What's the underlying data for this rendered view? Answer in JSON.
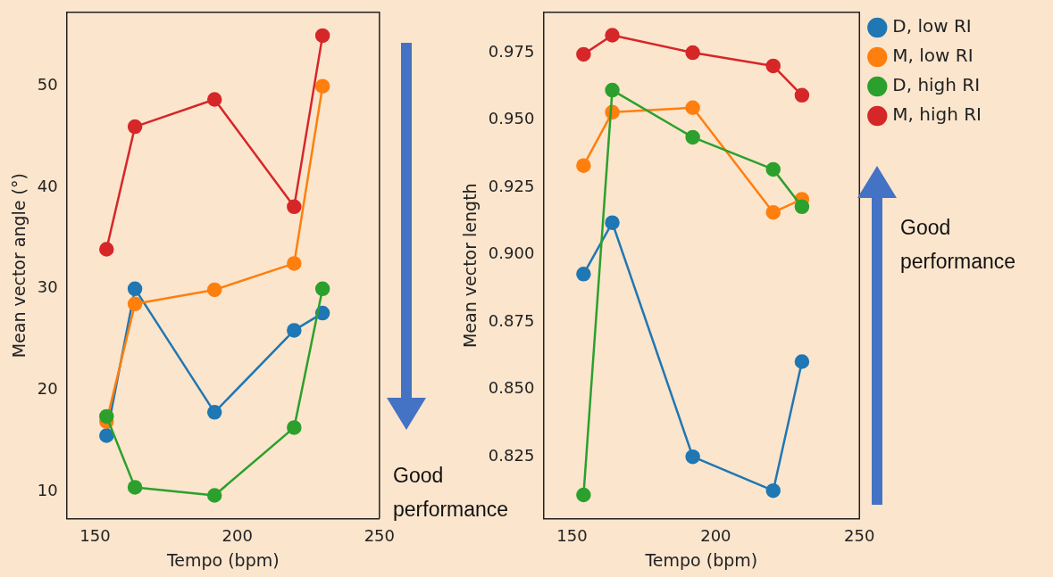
{
  "chart_data": [
    {
      "type": "line",
      "xlabel": "Tempo (bpm)",
      "ylabel": "Mean vector angle (°)",
      "x": [
        154,
        164,
        192,
        220,
        230
      ],
      "xlim": [
        140,
        250
      ],
      "xticks": [
        150,
        200,
        250
      ],
      "ylim": [
        7.3,
        57.3
      ],
      "yticks": [
        10,
        20,
        30,
        40,
        50
      ],
      "grid": false,
      "legend": false,
      "marker": "circle",
      "line_style": "solid",
      "series": [
        {
          "color": "#1f77b4",
          "values": [
            15.5,
            30.0,
            17.8,
            25.9,
            27.6
          ]
        },
        {
          "color": "#ff7f0e",
          "values": [
            16.9,
            28.5,
            29.9,
            32.5,
            50.0
          ]
        },
        {
          "color": "#2ca02c",
          "values": [
            17.4,
            10.4,
            9.6,
            16.3,
            30.0
          ]
        },
        {
          "color": "#d62728",
          "values": [
            33.9,
            46.0,
            48.7,
            38.1,
            55.0
          ]
        }
      ],
      "annotations": [
        "Good performance"
      ]
    },
    {
      "type": "line",
      "xlabel": "Tempo (bpm)",
      "ylabel": "Mean vector length",
      "x": [
        154,
        164,
        192,
        220,
        230
      ],
      "xlim": [
        140,
        250
      ],
      "xticks": [
        150,
        200,
        250
      ],
      "ylim": [
        0.802,
        0.99
      ],
      "yticks": [
        0.825,
        {
          "value": 0.85,
          "label": "0.850"
        },
        0.875,
        {
          "value": 0.9,
          "label": "0.900"
        },
        0.925,
        {
          "value": 0.95,
          "label": "0.950"
        },
        0.975
      ],
      "grid": false,
      "legend": "top right",
      "marker": "circle",
      "line_style": "solid",
      "series": [
        {
          "name": "D, low RI",
          "color": "#1f77b4",
          "values": [
            0.8928,
            0.9119,
            0.825,
            0.8124,
            0.8603
          ]
        },
        {
          "name": "M, low RI",
          "color": "#ff7f0e",
          "values": [
            0.9331,
            0.9529,
            0.9546,
            0.9157,
            0.9206
          ]
        },
        {
          "name": "D, high RI",
          "color": "#2ca02c",
          "values": [
            0.8108,
            0.9611,
            0.9436,
            0.9317,
            0.9178
          ]
        },
        {
          "name": "M, high RI",
          "color": "#d62728",
          "values": [
            0.9744,
            0.9815,
            0.975,
            0.9701,
            0.9592
          ]
        }
      ],
      "annotations": [
        "Good performance"
      ]
    }
  ]
}
